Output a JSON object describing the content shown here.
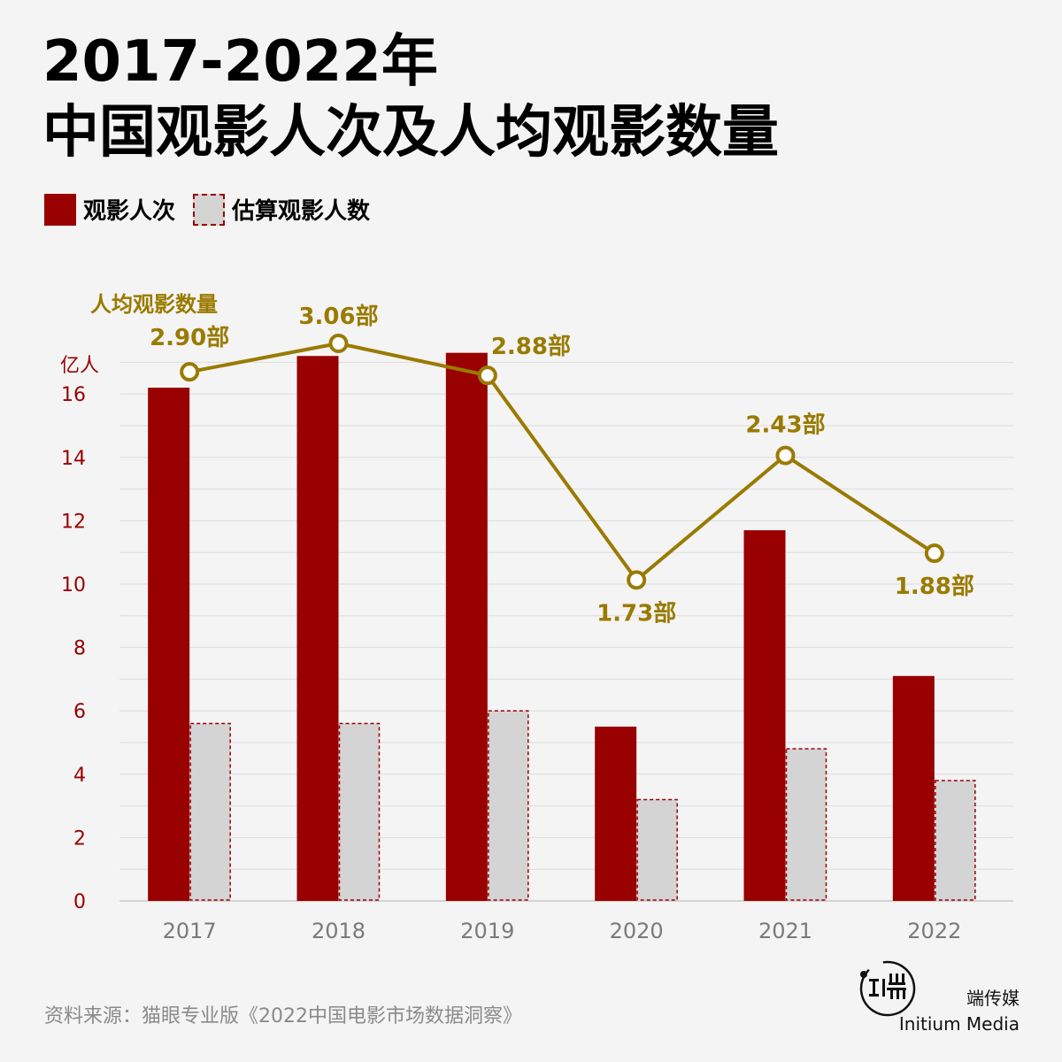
{
  "title_line1": "2017-2022年",
  "title_line2": "中国观影人次及人均观影数量",
  "legend": {
    "series1": "观影人次",
    "series2": "估算观影人数"
  },
  "chart_data": {
    "type": "bar",
    "categories": [
      "2017",
      "2018",
      "2019",
      "2020",
      "2021",
      "2022"
    ],
    "series": [
      {
        "name": "观影人次",
        "values": [
          16.2,
          17.2,
          17.3,
          5.5,
          11.7,
          7.1
        ],
        "color": "#990000"
      },
      {
        "name": "估算观影人数",
        "values": [
          5.6,
          5.6,
          6.0,
          3.2,
          4.8,
          3.8
        ],
        "color": "#d4d4d4"
      }
    ],
    "line": {
      "name": "人均观影数量",
      "labels": [
        "2.90部",
        "3.06部",
        "2.88部",
        "1.73部",
        "2.43部",
        "1.88部"
      ],
      "values": [
        2.9,
        3.06,
        2.88,
        1.73,
        2.43,
        1.88
      ],
      "color": "#9a7a00"
    },
    "y_unit": "亿人",
    "yticks": [
      0,
      2,
      4,
      6,
      8,
      10,
      12,
      14,
      16
    ],
    "ylim": [
      0,
      17
    ]
  },
  "source": "资料来源：猫眼专业版《2022中国电影市场数据洞察》",
  "brand": {
    "cn": "端传媒",
    "en": "Initium Media"
  }
}
